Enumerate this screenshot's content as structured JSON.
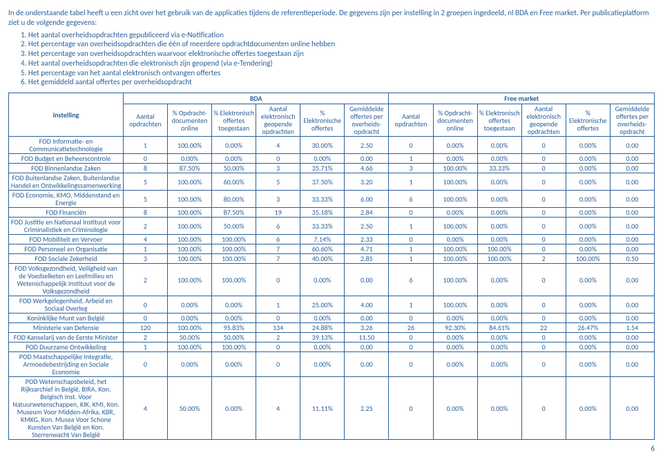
{
  "intro": "In de onderstaande tabel heeft u een zicht over het gebruik van de applicaties tijdens de referentieperiode. De gegevens zijn per instelling in 2 groepen ingedeeld, nl BDA en Free market. Per publicatieplatform ziet u de volgende gegevens:",
  "list": [
    "1.    Het aantal overheidsopdrachten gepubliceerd via e-Notification",
    "2.    Het percentage van overheidsopdrachten die één of meerdere opdrachtdocumenten online hebben",
    "3.    Het percentage van overheidsopdrachten waarvoor elektronische offertes toegestaan zijn",
    "4.    Het aantal overheidsopdrachten die elektronisch zijn geopend (via e-Tendering)",
    "5.    Het percentage van het aantal elektronisch ontvangen offertes",
    "6.    Het gemiddeld aantal offertes per overheidsopdracht"
  ],
  "headers": {
    "instelling": "Instelling",
    "bda": "BDA",
    "free": "Free market",
    "cols": [
      "Aantal opdrachten",
      "% Opdracht-documenten online",
      "% Elektronisch offertes toegestaan",
      "Aantal elektronisch geopende opdrachten",
      "% Elektronische offertes",
      "Gemiddelde offertes per overheids-opdracht"
    ]
  },
  "rows": [
    {
      "n": "FOD Informatie- en Communicatietechnologie",
      "b": [
        "1",
        "100.00%",
        "0.00%",
        "4",
        "30.00%",
        "2.50"
      ],
      "f": [
        "0",
        "0.00%",
        "0.00%",
        "0",
        "0.00%",
        "0.00"
      ]
    },
    {
      "n": "FOD Budget en Beheerscontrole",
      "b": [
        "0",
        "0.00%",
        "0.00%",
        "0",
        "0.00%",
        "0.00"
      ],
      "f": [
        "1",
        "0.00%",
        "0.00%",
        "0",
        "0.00%",
        "0.00"
      ]
    },
    {
      "n": "FOD Binnenlandse Zaken",
      "b": [
        "8",
        "87.50%",
        "50.00%",
        "3",
        "35.71%",
        "4.66"
      ],
      "f": [
        "3",
        "100.00%",
        "33.33%",
        "0",
        "0.00%",
        "0.00"
      ]
    },
    {
      "n": "FOD Buitenlandse Zaken, Buitenlandse Handel en Ontwikkelingssamenwerking",
      "b": [
        "5",
        "100.00%",
        "60.00%",
        "5",
        "37.50%",
        "3.20"
      ],
      "f": [
        "1",
        "100.00%",
        "0.00%",
        "0",
        "0.00%",
        "0.00"
      ]
    },
    {
      "n": "FOD Economie, KMO, Middenstand en Energie",
      "b": [
        "5",
        "100.00%",
        "80.00%",
        "3",
        "33.33%",
        "6.00"
      ],
      "f": [
        "6",
        "100.00%",
        "0.00%",
        "0",
        "0.00%",
        "0.00"
      ]
    },
    {
      "n": "FOD Financiën",
      "b": [
        "8",
        "100.00%",
        "87.50%",
        "19",
        "35.18%",
        "2.84"
      ],
      "f": [
        "0",
        "0.00%",
        "0.00%",
        "0",
        "0.00%",
        "0.00"
      ]
    },
    {
      "n": "FOD Justitie en Nationaal Instituut voor Criminalistiek en Criminologie",
      "b": [
        "2",
        "100.00%",
        "50.00%",
        "6",
        "33.33%",
        "2.50"
      ],
      "f": [
        "1",
        "100.00%",
        "0.00%",
        "0",
        "0.00%",
        "0.00"
      ]
    },
    {
      "n": "FOD Mobiliteit en Vervoer",
      "b": [
        "4",
        "100.00%",
        "100.00%",
        "6",
        "7.14%",
        "2.33"
      ],
      "f": [
        "0",
        "0.00%",
        "0.00%",
        "0",
        "0.00%",
        "0.00"
      ]
    },
    {
      "n": "FOD Personeel en Organisatie",
      "b": [
        "1",
        "100.00%",
        "100.00%",
        "7",
        "60.60%",
        "4.71"
      ],
      "f": [
        "1",
        "100.00%",
        "100.00%",
        "0",
        "0.00%",
        "0.00"
      ]
    },
    {
      "n": "FOD Sociale Zekerheid",
      "b": [
        "3",
        "100.00%",
        "100.00%",
        "7",
        "40.00%",
        "2.85"
      ],
      "f": [
        "1",
        "100.00%",
        "100.00%",
        "2",
        "100.00%",
        "0.50"
      ]
    },
    {
      "n": "FOD Volksgezondheid, Veiligheid van de Voedselketen en Leefmilieu en Wetenschappelijk Instituut voor de Volksgezondheid",
      "b": [
        "2",
        "100.00%",
        "100.00%",
        "0",
        "0.00%",
        "0.00"
      ],
      "f": [
        "6",
        "100.00%",
        "0.00%",
        "0",
        "0.00%",
        "0.00"
      ]
    },
    {
      "n": "FOD Werkgelegenheid, Arbeid en Sociaal Overleg",
      "b": [
        "0",
        "0.00%",
        "0.00%",
        "1",
        "25.00%",
        "4.00"
      ],
      "f": [
        "1",
        "100.00%",
        "0.00%",
        "0",
        "0.00%",
        "0.00"
      ]
    },
    {
      "n": "Koninklijke Munt van België",
      "b": [
        "0",
        "0.00%",
        "0.00%",
        "0",
        "0.00%",
        "0.00"
      ],
      "f": [
        "0",
        "0.00%",
        "0.00%",
        "0",
        "0.00%",
        "0.00"
      ]
    },
    {
      "n": "Ministerie van Defensie",
      "b": [
        "120",
        "100.00%",
        "95.83%",
        "134",
        "24.88%",
        "3.26"
      ],
      "f": [
        "26",
        "92.30%",
        "84.61%",
        "22",
        "26.47%",
        "1.54"
      ]
    },
    {
      "n": "FOD Kanselarij van de Eerste Minister",
      "b": [
        "2",
        "50.00%",
        "50.00%",
        "2",
        "39.13%",
        "11.50"
      ],
      "f": [
        "0",
        "0.00%",
        "0.00%",
        "0",
        "0.00%",
        "0.00"
      ]
    },
    {
      "n": "POD Duurzame Ontwikkeling",
      "b": [
        "1",
        "100.00%",
        "100.00%",
        "0",
        "0.00%",
        "0.00"
      ],
      "f": [
        "0",
        "0.00%",
        "0.00%",
        "0",
        "0.00%",
        "0.00"
      ]
    },
    {
      "n": "POD Maatschappelijke Integratie, Armoedebestrijding en Sociale Economie",
      "b": [
        "0",
        "0.00%",
        "0.00%",
        "0",
        "0.00%",
        "0.00"
      ],
      "f": [
        "0",
        "0.00%",
        "0.00%",
        "0",
        "0.00%",
        "0.00"
      ]
    },
    {
      "n": "POD Wetenschapsbeleid, het Rijksarchief in België, BIRA, Kon. Belgisch Inst. Voor Natuurwetenschappen, KIK, KMI, Kon. Museum Voor Midden-Afrika, KBR, KMKG, Kon. Musea Voor Schone Kunsten Van België en Kon. Sterrenwacht Van België",
      "b": [
        "4",
        "50.00%",
        "0.00%",
        "4",
        "11.11%",
        "2.25"
      ],
      "f": [
        "0",
        "0.00%",
        "0.00%",
        "0",
        "0.00%",
        "0.00"
      ]
    }
  ],
  "page": "6"
}
